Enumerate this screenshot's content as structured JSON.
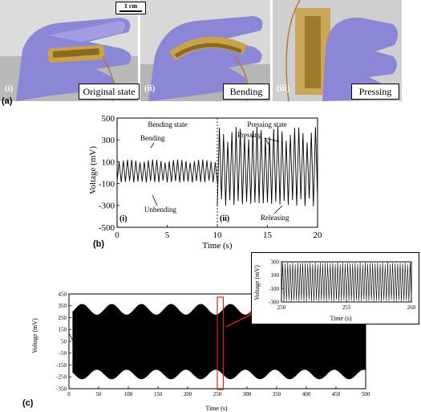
{
  "panel_a": {
    "label": "(a)",
    "scale_bar": "1 cm",
    "photos": [
      {
        "roman": "(i)",
        "caption": "Original state"
      },
      {
        "roman": "(ii)",
        "caption": "Bending"
      },
      {
        "roman": "(iii)",
        "caption": "Pressing"
      }
    ]
  },
  "panel_b": {
    "label": "(b)"
  },
  "panel_c": {
    "label": "(c)"
  },
  "colors": {
    "glove": "#8c86d6",
    "film": "#c9a24a",
    "highlight": "#e02020",
    "trace": "#000000"
  },
  "chart_data": [
    {
      "id": "b",
      "type": "line",
      "xlabel": "Time (s)",
      "ylabel": "Voltage (mV)",
      "xlim": [
        0,
        20
      ],
      "ylim": [
        -500,
        500
      ],
      "xticks": [
        0,
        5,
        10,
        15,
        20
      ],
      "yticks": [
        500,
        300,
        100,
        -100,
        -300,
        -500
      ],
      "divider_x": 10,
      "region_labels": [
        "Bending state",
        "Pressing state"
      ],
      "region_markers": [
        "(i)",
        "(ii)"
      ],
      "annotations": [
        "Bending",
        "Unbending",
        "Pressing",
        "Releasing"
      ],
      "series": [
        {
          "segment": "bending",
          "x_start": 0,
          "x_end": 10,
          "cycles": 24,
          "y_peak": 120,
          "y_trough": -90
        },
        {
          "segment": "pressing",
          "x_start": 10,
          "x_end": 20,
          "cycles": 24,
          "y_peak": 420,
          "y_trough": -320
        }
      ]
    },
    {
      "id": "c",
      "type": "line",
      "xlabel": "Time (s)",
      "ylabel": "Voltage (mV)",
      "xlim": [
        0,
        500
      ],
      "ylim": [
        -350,
        450
      ],
      "xticks": [
        0,
        50,
        100,
        150,
        200,
        250,
        300,
        350,
        400,
        450,
        500
      ],
      "yticks": [
        450,
        350,
        250,
        150,
        50,
        -50,
        -150,
        -250,
        -350
      ],
      "highlight_x": [
        250,
        260
      ],
      "envelope": {
        "upper_mean": 320,
        "upper_amp": 45,
        "lower_mean": -230,
        "lower_amp": 40,
        "period_s": 50
      }
    },
    {
      "id": "c_inset",
      "type": "line",
      "xlabel": "Time (s)",
      "ylabel": "Voltage (mV)",
      "xlim": [
        250,
        260
      ],
      "ylim": [
        -300,
        300
      ],
      "xticks": [
        250,
        255,
        260
      ],
      "yticks": [
        300,
        100,
        -100,
        -300
      ],
      "cycles": 52,
      "y_peak": 290,
      "y_trough": -290
    }
  ]
}
